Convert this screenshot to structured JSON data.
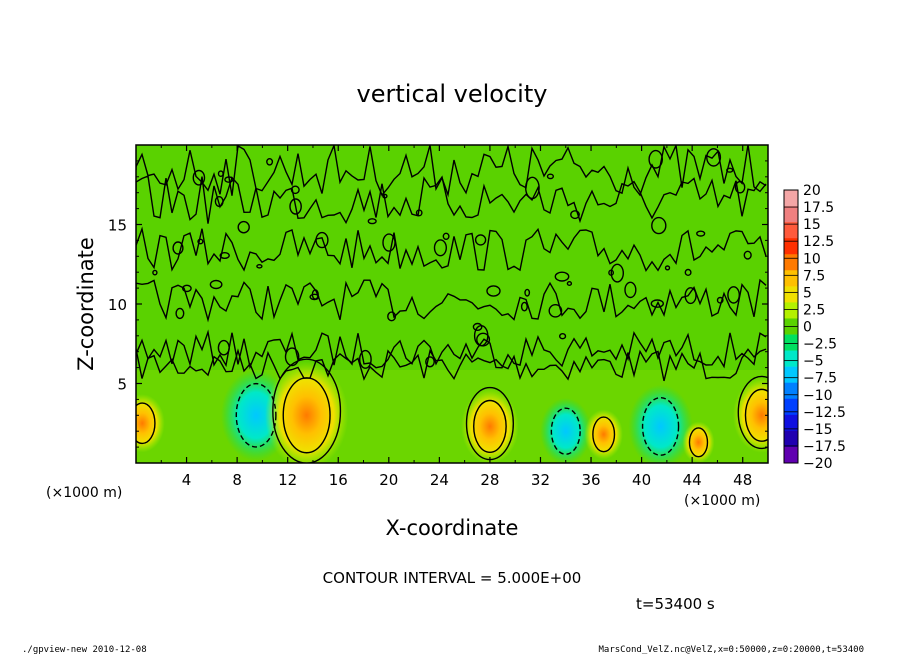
{
  "chart_data": {
    "type": "heatmap",
    "title": "vertical velocity",
    "xlabel": "X-coordinate",
    "ylabel": "Z-coordinate",
    "x_unit_label": "(×1000 m)",
    "z_unit_label": "(×1000 m)",
    "xlim": [
      0,
      50
    ],
    "ylim": [
      0,
      20
    ],
    "x_ticks": [
      "4",
      "8",
      "12",
      "16",
      "20",
      "24",
      "28",
      "32",
      "36",
      "40",
      "44",
      "48"
    ],
    "y_ticks": [
      "5",
      "10",
      "15"
    ],
    "colorbar": {
      "labels": [
        "20",
        "17.5",
        "15",
        "12.5",
        "10",
        "7.5",
        "5",
        "2.5",
        "0",
        "−2.5",
        "−5",
        "−7.5",
        "−10",
        "−12.5",
        "−15",
        "−17.5",
        "−20"
      ],
      "colors": [
        "#f4a6a6",
        "#f08080",
        "#ff5a3c",
        "#ff3000",
        "#ff7a00",
        "#ffc000",
        "#f0e000",
        "#b4f000",
        "#5ad200",
        "#00e060",
        "#00e8c8",
        "#00c8ff",
        "#0080ff",
        "#0040ff",
        "#1010e0",
        "#2000b0",
        "#6000b0"
      ]
    },
    "contour_interval_text": "CONTOUR INTERVAL = 5.000E+00",
    "time_text": "t=53400 s",
    "features": [
      {
        "x": 0.5,
        "z": 2.5,
        "sign": "positive"
      },
      {
        "x": 9.5,
        "z": 3.0,
        "sign": "negative"
      },
      {
        "x": 13.5,
        "z": 3.0,
        "sign": "positive"
      },
      {
        "x": 28.0,
        "z": 2.3,
        "sign": "positive"
      },
      {
        "x": 34.0,
        "z": 2.0,
        "sign": "negative"
      },
      {
        "x": 37.0,
        "z": 1.8,
        "sign": "positive"
      },
      {
        "x": 41.5,
        "z": 2.3,
        "sign": "negative"
      },
      {
        "x": 44.5,
        "z": 1.3,
        "sign": "positive"
      },
      {
        "x": 49.5,
        "z": 3.0,
        "sign": "positive"
      }
    ]
  },
  "footer": {
    "left": "./gpview-new  2010-12-08",
    "right": "MarsCond_VelZ.nc@VelZ,x=0:50000,z=0:20000,t=53400"
  }
}
